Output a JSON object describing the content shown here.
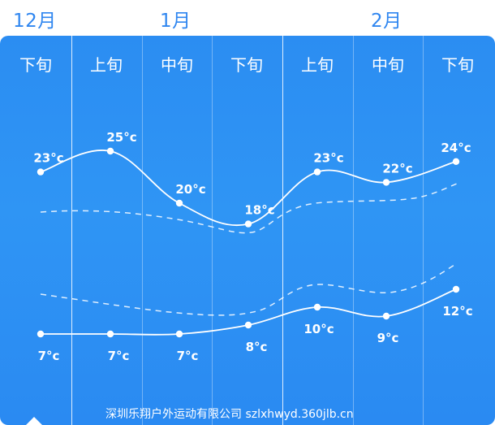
{
  "months": [
    {
      "label": "12月",
      "col": 0
    },
    {
      "label": "1月",
      "col": 2
    },
    {
      "label": "2月",
      "col": 5
    }
  ],
  "periods": [
    "下旬",
    "上旬",
    "中旬",
    "下旬",
    "上旬",
    "中旬",
    "下旬"
  ],
  "footer": "深圳乐翔户外运动有限公司 szlxhwyd.360jlb.cn",
  "colors": {
    "panel": "#2b8df2",
    "line": "#ffffff",
    "month_text": "#2f86f0"
  },
  "chart_data": {
    "type": "line",
    "categories": [
      "下旬",
      "上旬",
      "中旬",
      "下旬",
      "上旬",
      "中旬",
      "下旬"
    ],
    "series": [
      {
        "values": [
          23,
          25,
          20,
          18,
          23,
          22,
          24
        ],
        "labels": [
          "23°c",
          "25°c",
          "20°c",
          "18°c",
          "23°c",
          "22°c",
          "24°c"
        ]
      },
      {
        "values": [
          7,
          7,
          7,
          8,
          10,
          9,
          12
        ],
        "labels": [
          "7°c",
          "7°c",
          "7°c",
          "8°c",
          "10°c",
          "9°c",
          "12°c"
        ]
      }
    ],
    "title": "",
    "xlabel": "",
    "ylabel": ""
  }
}
